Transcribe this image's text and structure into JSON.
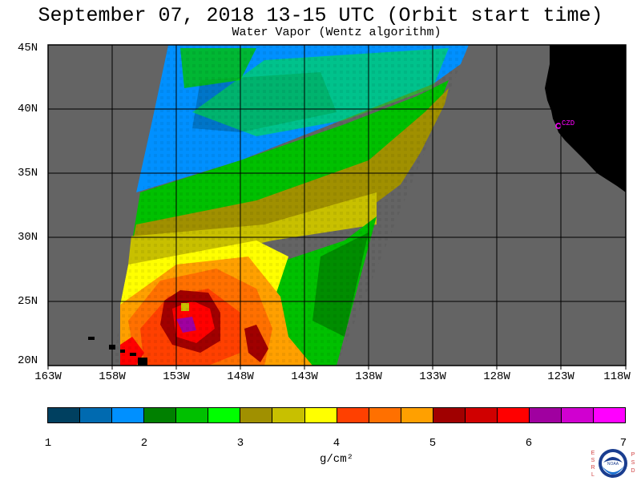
{
  "title": "September 07, 2018  13-15 UTC  (Orbit start time)",
  "subtitle": "Water Vapor (Wentz algorithm)",
  "lat_labels": [
    "45N",
    "40N",
    "35N",
    "30N",
    "25N",
    "20N"
  ],
  "lon_labels": [
    "163W",
    "158W",
    "153W",
    "148W",
    "143W",
    "138W",
    "133W",
    "128W",
    "123W",
    "118W"
  ],
  "lon_range": [
    -163,
    -118
  ],
  "lat_range": [
    20,
    45
  ],
  "station_label": "CZD",
  "colorbar": {
    "colors": [
      "#004060",
      "#006ab0",
      "#0090ff",
      "#008000",
      "#00c000",
      "#00ff00",
      "#a09000",
      "#c8c000",
      "#ffff00",
      "#ff4000",
      "#ff7000",
      "#ffa000",
      "#a00000",
      "#d00000",
      "#ff0000",
      "#a000a0",
      "#d000d0",
      "#ff00ff"
    ],
    "ticks": [
      "1",
      "2",
      "3",
      "4",
      "5",
      "6",
      "7"
    ],
    "units": "g/cm²"
  },
  "logo": {
    "left_letters": "ESRL",
    "right_letters": "PSD",
    "center": "NOAA"
  },
  "colors": {
    "land": "#000000",
    "no_data": "#646464",
    "grid": "#000000",
    "marker": "#ff00ff"
  }
}
